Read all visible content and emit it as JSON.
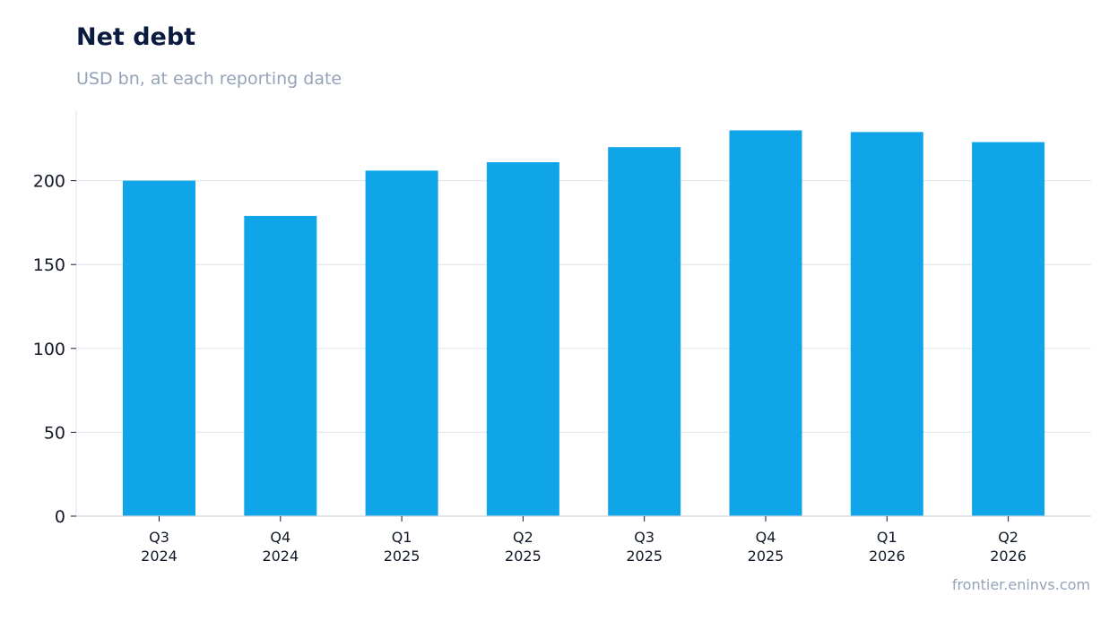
{
  "chart_data": {
    "type": "bar",
    "title": "Net debt",
    "subtitle": "USD bn, at each reporting date",
    "source": "frontier.eninvs.com",
    "categories": [
      [
        "Q3",
        "2024"
      ],
      [
        "Q4",
        "2024"
      ],
      [
        "Q1",
        "2025"
      ],
      [
        "Q2",
        "2025"
      ],
      [
        "Q3",
        "2025"
      ],
      [
        "Q4",
        "2025"
      ],
      [
        "Q1",
        "2026"
      ],
      [
        "Q2",
        "2026"
      ]
    ],
    "values": [
      200,
      179,
      206,
      211,
      220,
      230,
      229,
      223
    ],
    "ylim": [
      0,
      242
    ],
    "yticks": [
      0,
      50,
      100,
      150,
      200
    ],
    "grid": true,
    "colors": {
      "bar": "#10a5e8",
      "grid": "#e2e8f0",
      "axis": "#cbd5e1",
      "title": "#0b1a3f",
      "subtitle": "#94a3b8"
    }
  }
}
